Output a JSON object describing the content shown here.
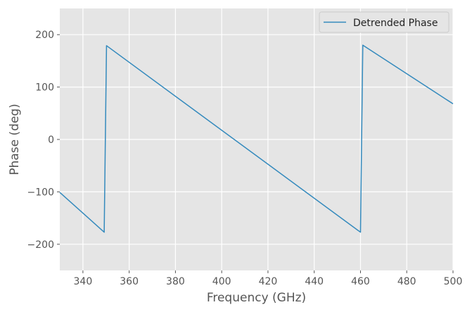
{
  "chart_data": {
    "type": "line",
    "xlabel": "Frequency (GHz)",
    "ylabel": "Phase (deg)",
    "xlim": [
      330,
      500
    ],
    "ylim": [
      -250,
      250
    ],
    "xticks": [
      340,
      360,
      380,
      400,
      420,
      440,
      460,
      480,
      500
    ],
    "yticks": [
      -200,
      -100,
      0,
      100,
      200
    ],
    "xtick_labels": [
      "340",
      "360",
      "380",
      "400",
      "420",
      "440",
      "460",
      "480",
      "500"
    ],
    "ytick_labels": [
      "−200",
      "−100",
      "0",
      "100",
      "200"
    ],
    "grid": true,
    "legend_position": "top-right",
    "series": [
      {
        "name": "Detrended Phase",
        "color": "#348abd",
        "x": [
          330,
          349.2,
          350.2,
          460,
          461,
          500
        ],
        "y": [
          -101,
          -177,
          179,
          -177,
          180,
          68
        ]
      }
    ]
  },
  "colors": {
    "plot_background": "#e5e5e5",
    "grid": "#ffffff",
    "line": "#348abd"
  }
}
